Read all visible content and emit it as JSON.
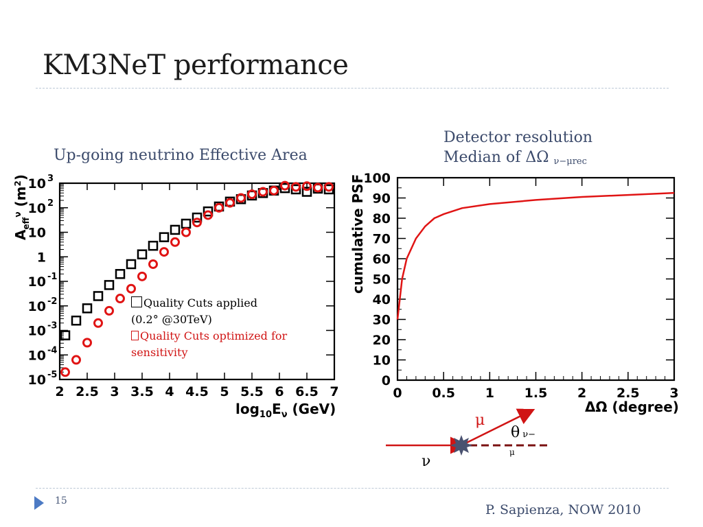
{
  "slide": {
    "title": "KM3NeT performance",
    "page_number": "15",
    "footer": "P. Sapienza, NOW 2010"
  },
  "captions": {
    "left": "Up-going neutrino Effective Area",
    "right_line1": "Detector resolution",
    "right_line2": "Median of ΔΩ ",
    "right_line2_sub": "ν−μrec"
  },
  "legend": {
    "line1": "Quality Cuts applied",
    "line2": "(0.2°  @30TeV)",
    "line3": "Quality Cuts optimized for",
    "line4": "sensitivity"
  },
  "diagram": {
    "mu": "μ",
    "theta": "θ",
    "theta_sub": "ν−",
    "theta_sub2": "μ",
    "nu": "ν"
  },
  "colors": {
    "red": "#e01414",
    "black": "#000000",
    "accent": "#3b4a6b"
  },
  "chart_data": [
    {
      "type": "scatter",
      "xlabel": "log10Eν (GeV)",
      "ylabel": "Aeffν (m²)",
      "xlim": [
        2,
        7
      ],
      "ylim_log10": [
        -5,
        3
      ],
      "x_ticks": [
        "2",
        "2.5",
        "3",
        "3.5",
        "4",
        "4.5",
        "5",
        "5.5",
        "6",
        "6.5",
        "7"
      ],
      "y_ticks": [
        {
          "base": "10",
          "exp": "3"
        },
        {
          "base": "10",
          "exp": "2"
        },
        {
          "base": "10",
          "exp": ""
        },
        {
          "base": "1",
          "exp": ""
        },
        {
          "base": "10",
          "exp": "-1"
        },
        {
          "base": "10",
          "exp": "-2"
        },
        {
          "base": "10",
          "exp": "-3"
        },
        {
          "base": "10",
          "exp": "-4"
        },
        {
          "base": "10",
          "exp": "-5"
        }
      ],
      "series": [
        {
          "marker": "square",
          "color": "#000000",
          "x": [
            2.1,
            2.3,
            2.5,
            2.7,
            2.9,
            3.1,
            3.3,
            3.5,
            3.7,
            3.9,
            4.1,
            4.3,
            4.5,
            4.7,
            4.9,
            5.1,
            5.3,
            5.5,
            5.7,
            5.9,
            6.1,
            6.3,
            6.5,
            6.7,
            6.9
          ],
          "log10_y": [
            -3.2,
            -2.6,
            -2.1,
            -1.6,
            -1.15,
            -0.7,
            -0.3,
            0.1,
            0.45,
            0.8,
            1.1,
            1.35,
            1.6,
            1.85,
            2.05,
            2.25,
            2.35,
            2.5,
            2.6,
            2.7,
            2.8,
            2.75,
            2.65,
            2.78,
            2.75
          ]
        },
        {
          "marker": "circle",
          "color": "#e01414",
          "x": [
            2.1,
            2.3,
            2.5,
            2.7,
            2.9,
            3.1,
            3.3,
            3.5,
            3.7,
            3.9,
            4.1,
            4.3,
            4.5,
            4.7,
            4.9,
            5.1,
            5.3,
            5.5,
            5.7,
            5.9,
            6.1,
            6.3,
            6.5,
            6.7,
            6.9
          ],
          "log10_y": [
            -4.7,
            -4.2,
            -3.5,
            -2.7,
            -2.2,
            -1.7,
            -1.3,
            -0.8,
            -0.3,
            0.2,
            0.6,
            1.0,
            1.4,
            1.7,
            2.0,
            2.2,
            2.4,
            2.55,
            2.65,
            2.7,
            2.9,
            2.85,
            2.88,
            2.82,
            2.85
          ]
        }
      ]
    },
    {
      "type": "line",
      "xlabel": "ΔΩ (degree)",
      "ylabel": "cumulative PSF",
      "xlim": [
        0,
        3
      ],
      "ylim": [
        0,
        100
      ],
      "x_ticks": [
        "0",
        "0.5",
        "1",
        "1.5",
        "2",
        "2.5",
        "3"
      ],
      "y_ticks": [
        "0",
        "10",
        "20",
        "30",
        "40",
        "50",
        "60",
        "70",
        "80",
        "90",
        "100"
      ],
      "series": [
        {
          "color": "#e01414",
          "x": [
            0.0,
            0.02,
            0.05,
            0.1,
            0.2,
            0.3,
            0.4,
            0.5,
            0.7,
            1.0,
            1.5,
            2.0,
            2.5,
            3.0
          ],
          "y": [
            30,
            38,
            50,
            60,
            70,
            76,
            80,
            82,
            85,
            87,
            89,
            90.5,
            91.5,
            92.5
          ]
        }
      ]
    }
  ]
}
